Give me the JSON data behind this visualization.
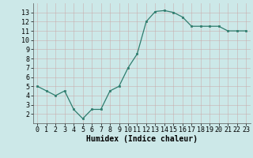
{
  "x": [
    0,
    1,
    2,
    3,
    4,
    5,
    6,
    7,
    8,
    9,
    10,
    11,
    12,
    13,
    14,
    15,
    16,
    17,
    18,
    19,
    20,
    21,
    22,
    23
  ],
  "y": [
    5.0,
    4.5,
    4.0,
    4.5,
    2.5,
    1.5,
    2.5,
    2.5,
    4.5,
    5.0,
    7.0,
    8.5,
    12.0,
    13.1,
    13.2,
    13.0,
    12.5,
    11.5,
    11.5,
    11.5,
    11.5,
    11.0,
    11.0,
    11.0
  ],
  "xlabel": "Humidex (Indice chaleur)",
  "line_color": "#2e7d6e",
  "marker_color": "#2e7d6e",
  "bg_color": "#cce8e8",
  "grid_color": "#b0d0d0",
  "xlim": [
    -0.5,
    23.5
  ],
  "ylim": [
    1.0,
    14.0
  ],
  "xtick_labels": [
    "0",
    "1",
    "2",
    "3",
    "4",
    "5",
    "6",
    "7",
    "8",
    "9",
    "10",
    "11",
    "12",
    "13",
    "14",
    "15",
    "16",
    "17",
    "18",
    "19",
    "20",
    "21",
    "22",
    "23"
  ],
  "ytick_values": [
    2,
    3,
    4,
    5,
    6,
    7,
    8,
    9,
    10,
    11,
    12,
    13
  ],
  "xlabel_fontsize": 7,
  "tick_fontsize": 6
}
